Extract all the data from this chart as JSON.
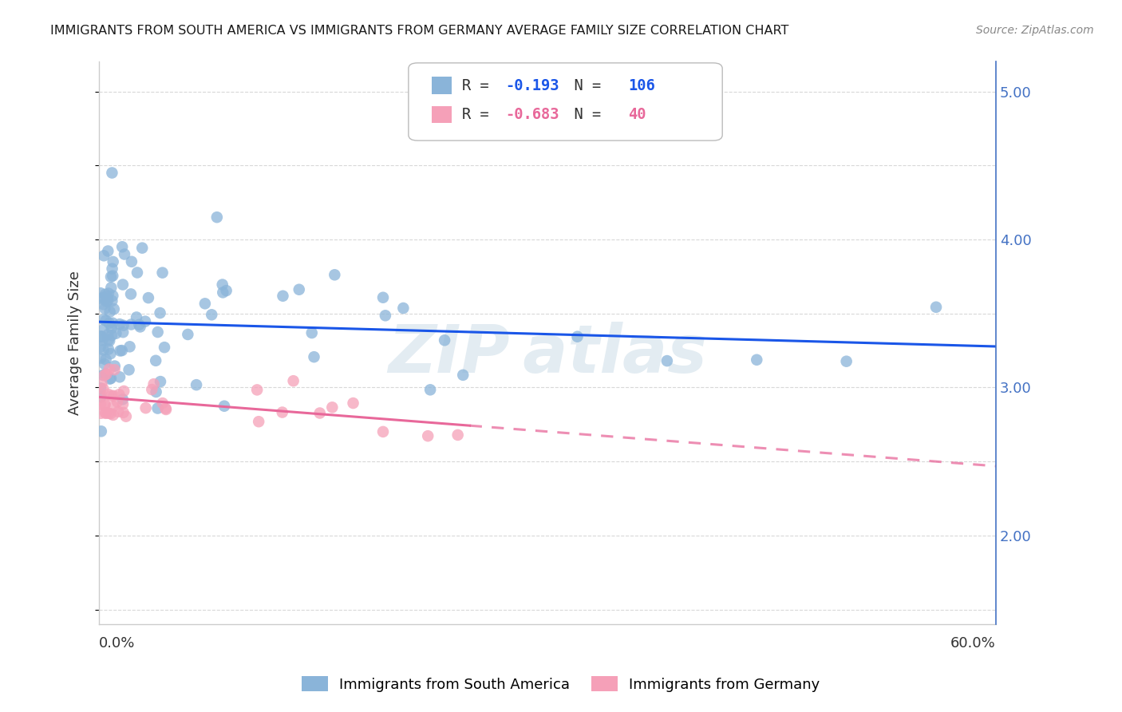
{
  "title": "IMMIGRANTS FROM SOUTH AMERICA VS IMMIGRANTS FROM GERMANY AVERAGE FAMILY SIZE CORRELATION CHART",
  "source": "Source: ZipAtlas.com",
  "ylabel": "Average Family Size",
  "legend_label_blue": "Immigrants from South America",
  "legend_label_pink": "Immigrants from Germany",
  "R_blue": -0.193,
  "N_blue": 106,
  "R_pink": -0.683,
  "N_pink": 40,
  "xmin": 0.0,
  "xmax": 0.6,
  "ymin": 1.4,
  "ymax": 5.2,
  "blue_scatter_color": "#8ab4d9",
  "pink_scatter_color": "#f5a0b8",
  "trend_blue_color": "#1a56e8",
  "trend_pink_color": "#e8689a",
  "right_axis_color": "#4472c4",
  "grid_color": "#d8d8d8",
  "title_color": "#1a1a1a",
  "source_color": "#888888",
  "watermark_color": "#ccdde8",
  "axis_label_color": "#333333",
  "background_color": "#ffffff"
}
